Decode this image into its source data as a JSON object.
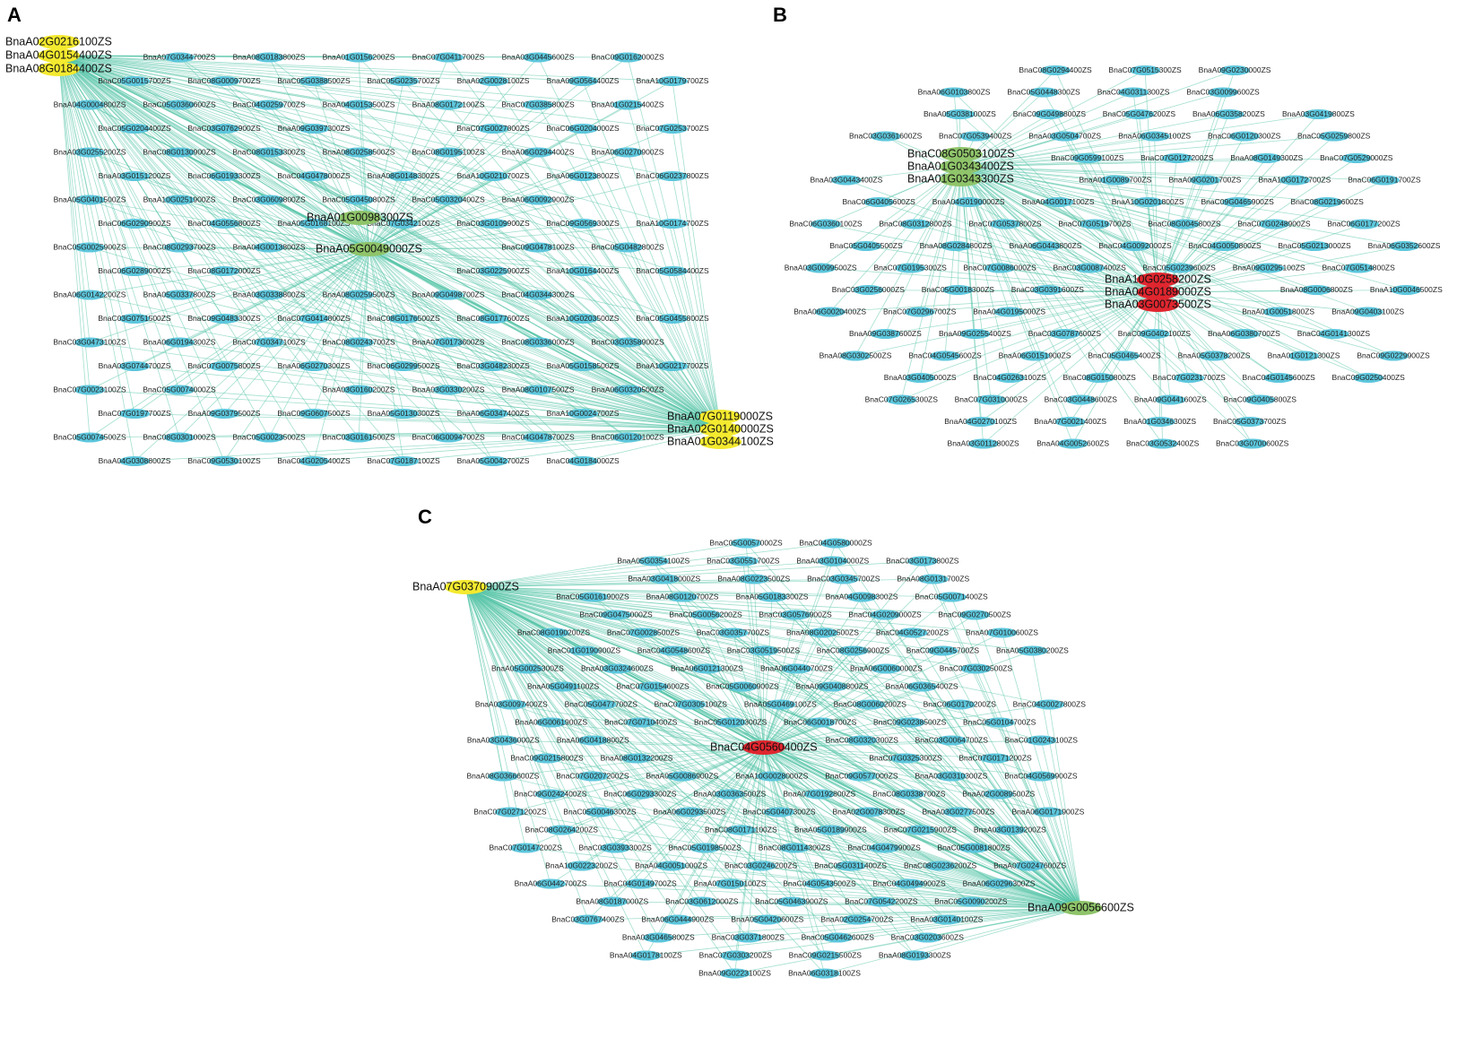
{
  "node_color": "#5cc6dc",
  "edge_color": "#56c4a8",
  "panels": [
    {
      "label": "A",
      "hub_groups": [
        {
          "color": "#f4ea2f",
          "genes": [
            "BnaA02G0216100ZS",
            "BnaA04G0154400ZS",
            "BnaA08G0184400ZS"
          ]
        },
        {
          "color": "#8fc46a",
          "genes": [
            "BnaA01G0098300ZS",
            "BnaA05G0049000ZS"
          ]
        },
        {
          "color": "#f4ea2f",
          "genes": [
            "BnaA07G0119000ZS",
            "BnaA02G0140000ZS",
            "BnaA01G0344100ZS"
          ]
        }
      ],
      "nodes": [
        "BnaA07G0344700ZS",
        "BnaA08G0183800ZS",
        "BnaA01G0156200ZS",
        "BnaC07G0411700ZS",
        "BnaA03G0445600ZS",
        "BnaC09G0162000ZS",
        "BnaC05G0015700ZS",
        "BnaC08G0009700ZS",
        "BnaC05G0388500ZS",
        "BnaC05G0235700ZS",
        "BnaA02G0028100ZS",
        "BnaA09G0564400ZS",
        "BnaA10G0179700ZS",
        "BnaA04G0004800ZS",
        "BnaC05G0360600ZS",
        "BnaC04G0259700ZS",
        "BnaA04G0153500ZS",
        "BnaA08G0172100ZS",
        "BnaC07G0385800ZS",
        "BnaA01G0215400ZS",
        "BnaC05G0204400ZS",
        "BnaC03G0762900ZS",
        "BnaA09G0397300ZS",
        "BnaC07G0027800ZS",
        "BnaC06G0204000ZS",
        "BnaC07G0253700ZS",
        "BnaA03G0255200ZS",
        "BnaC08G0130900ZS",
        "BnaC08G0153300ZS",
        "BnaA08G0258500ZS",
        "BnaC08G0195100ZS",
        "BnaA06G0294400ZS",
        "BnaA06G0270900ZS",
        "BnaA03G0151200ZS",
        "BnaC06G0193300ZS",
        "BnaC04G0478000ZS",
        "BnaA08G0148300ZS",
        "BnaA10G0210700ZS",
        "BnaA06G0123800ZS",
        "BnaC06G0237800ZS",
        "BnaA05G0401500ZS",
        "BnaA10G0251900ZS",
        "BnaC03G0609800ZS",
        "BnaC05G0450800ZS",
        "BnaC05G0320400ZS",
        "BnaA06G0092900ZS",
        "BnaC06G0290900ZS",
        "BnaC04G0556800ZS",
        "BnaA05G0168100ZS",
        "BnaC07G0342100ZS",
        "BnaC03G0109900ZS",
        "BnaC09G0569300ZS",
        "BnaA10G0174700ZS",
        "BnaC05G0025900ZS",
        "BnaC08G0293700ZS",
        "BnaA04G0013800ZS",
        "BnaC09G0478100ZS",
        "BnaC05G0482800ZS",
        "BnaC06G0289000ZS",
        "BnaC08G0172000ZS",
        "BnaC03G0225900ZS",
        "BnaA10G0164400ZS",
        "BnaC05G0584400ZS",
        "BnaA06G0142200ZS",
        "BnaA05G0337800ZS",
        "BnaA03G0338800ZS",
        "BnaA08G0259500ZS",
        "BnaA09G0498700ZS",
        "BnaC04G0344300ZS",
        "BnaC03G0751500ZS",
        "BnaC09G0483300ZS",
        "BnaC07G0414800ZS",
        "BnaC08G0176500ZS",
        "BnaC08G0177600ZS",
        "BnaA10G0203500ZS",
        "BnaC05G0455800ZS",
        "BnaC03G0473100ZS",
        "BnaA06G0194300ZS",
        "BnaC07G0347100ZS",
        "BnaC08G0243700ZS",
        "BnaA07G0173600ZS",
        "BnaC08G0336000ZS",
        "BnaC03G0358900ZS",
        "BnaA03G0744700ZS",
        "BnaC07G0075800ZS",
        "BnaA06G0270300ZS",
        "BnaC06G0299500ZS",
        "BnaC03G0482300ZS",
        "BnaA05G0158500ZS",
        "BnaA10G0217700ZS",
        "BnaC07G0023100ZS",
        "BnaC05G0074000ZS",
        "BnaA03G0160200ZS",
        "BnaA03G0330200ZS",
        "BnaA08G0107500ZS",
        "BnaA06G0320500ZS",
        "BnaC07G0197700ZS",
        "BnaA09G0379500ZS",
        "BnaC09G0607500ZS",
        "BnaA05G0130300ZS",
        "BnaA06G0347400ZS",
        "BnaA10G0024700ZS",
        "BnaC05G0074500ZS",
        "BnaC08G0301000ZS",
        "BnaC05G0023500ZS",
        "BnaC03G0161500ZS",
        "BnaC06G0094700ZS",
        "BnaC04G0478700ZS",
        "BnaC06G0120100ZS",
        "BnaA04G0308800ZS",
        "BnaC09G0530100ZS",
        "BnaC04G0205400ZS",
        "BnaC07G0187100ZS",
        "BnaA05G0042700ZS",
        "BnaC04G0184000ZS"
      ]
    },
    {
      "label": "B",
      "hub_groups": [
        {
          "color": "#8fc46a",
          "genes": [
            "BnaC08G0503100ZS",
            "BnaA01G0343400ZS",
            "BnaA01G0343300ZS"
          ]
        },
        {
          "color": "#e0262f",
          "genes": [
            "BnaA10G0258200ZS",
            "BnaA04G0189000ZS",
            "BnaA03G0073500ZS"
          ]
        }
      ],
      "nodes": [
        "BnaC08G0294400ZS",
        "BnaC07G0515300ZS",
        "BnaA09G0230000ZS",
        "BnaA06G0103800ZS",
        "BnaC05G0448300ZS",
        "BnaC04G0311300ZS",
        "BnaC03G0099600ZS",
        "BnaA05G0381000ZS",
        "BnaC09G0498800ZS",
        "BnaC05G0476200ZS",
        "BnaA06G0358200ZS",
        "BnaA03G0419800ZS",
        "BnaC03G0361600ZS",
        "BnaC07G0539400ZS",
        "BnaA03G0504700ZS",
        "BnaA06G0345100ZS",
        "BnaC06G0120300ZS",
        "BnaC05G0259800ZS",
        "BnaC09G0599100ZS",
        "BnaC07G0127200ZS",
        "BnaA08G0149300ZS",
        "BnaC07G0529000ZS",
        "BnaA03G0443400ZS",
        "BnaA01G0089700ZS",
        "BnaA09G0201700ZS",
        "BnaA10G0172700ZS",
        "BnaC06G0191700ZS",
        "BnaC06G0405600ZS",
        "BnaA04G0190000ZS",
        "BnaA04G0017100ZS",
        "BnaA10G0201800ZS",
        "BnaC09G0465900ZS",
        "BnaC08G0219600ZS",
        "BnaC06G0360100ZS",
        "BnaC08G0312800ZS",
        "BnaC07G0537800ZS",
        "BnaC07G0519700ZS",
        "BnaC08G0045800ZS",
        "BnaC07G0248900ZS",
        "BnaC06G0177200ZS",
        "BnaC05G0405500ZS",
        "BnaA08G0284800ZS",
        "BnaA06G0443800ZS",
        "BnaC04G0092000ZS",
        "BnaC04G0050800ZS",
        "BnaC05G0213000ZS",
        "BnaA06G0352600ZS",
        "BnaA03G0099500ZS",
        "BnaC07G0195300ZS",
        "BnaC07G0086000ZS",
        "BnaC03G0087400ZS",
        "BnaC05G0239600ZS",
        "BnaA09G0295100ZS",
        "BnaC07G0514800ZS",
        "BnaC03G0256000ZS",
        "BnaC05G0018300ZS",
        "BnaC03G0391600ZS",
        "BnaA08G0006800ZS",
        "BnaA10G0046500ZS",
        "BnaA06G0020400ZS",
        "BnaC07G0296700ZS",
        "BnaA04G0195000ZS",
        "BnaA01G0051800ZS",
        "BnaA09G0403100ZS",
        "BnaA09G0387600ZS",
        "BnaA09G0255400ZS",
        "BnaC03G0787600ZS",
        "BnaC09G0402100ZS",
        "BnaA06G0380700ZS",
        "BnaC04G0141300ZS",
        "BnaA08G0302500ZS",
        "BnaC04G0545600ZS",
        "BnaA06G0151900ZS",
        "BnaC05G0465400ZS",
        "BnaA05G0378200ZS",
        "BnaA01G0121300ZS",
        "BnaC09G0229900ZS",
        "BnaA03G0405000ZS",
        "BnaC04G0263100ZS",
        "BnaC08G0150800ZS",
        "BnaC07G0231700ZS",
        "BnaC04G0145600ZS",
        "BnaC09G0250400ZS",
        "BnaC07G0265300ZS",
        "BnaC07G0310000ZS",
        "BnaC03G0448600ZS",
        "BnaA09G0441600ZS",
        "BnaC09G0405800ZS",
        "BnaA04G0270100ZS",
        "BnaA07G0021400ZS",
        "BnaA01G0346300ZS",
        "BnaC05G0373700ZS",
        "BnaA03G0112800ZS",
        "BnaA04G0052600ZS",
        "BnaC03G0532400ZS",
        "BnaC03G0700600ZS"
      ]
    },
    {
      "label": "C",
      "hub_groups": [
        {
          "color": "#f4ea2f",
          "genes": [
            "BnaA07G0370900ZS"
          ]
        },
        {
          "color": "#e0262f",
          "genes": [
            "BnaC04G0560400ZS"
          ]
        },
        {
          "color": "#8fc46a",
          "genes": [
            "BnaA09G0056600ZS"
          ]
        }
      ],
      "nodes": [
        "BnaC05G0057000ZS",
        "BnaC04G0580000ZS",
        "BnaA05G0354100ZS",
        "BnaC03G0551700ZS",
        "BnaA03G0104000ZS",
        "BnaC03G0173800ZS",
        "BnaA03G0418000ZS",
        "BnaA08G0223500ZS",
        "BnaC03G0345700ZS",
        "BnaA08G0131700ZS",
        "BnaC05G0161900ZS",
        "BnaA08G0120700ZS",
        "BnaA05G0183300ZS",
        "BnaA04G0098300ZS",
        "BnaC05G0071400ZS",
        "BnaC09G0475000ZS",
        "BnaC05G0056200ZS",
        "BnaC03G0576900ZS",
        "BnaC04G0209000ZS",
        "BnaC09G0270500ZS",
        "BnaC08G0190200ZS",
        "BnaC07G0028500ZS",
        "BnaC03G0357700ZS",
        "BnaA08G0202500ZS",
        "BnaC04G0527200ZS",
        "BnaA07G0100600ZS",
        "BnaC01G0190900ZS",
        "BnaC04G0548600ZS",
        "BnaC03G0519500ZS",
        "BnaC08G0256900ZS",
        "BnaC09G0445700ZS",
        "BnaA05G0380200ZS",
        "BnaA05G0025300ZS",
        "BnaA03G0324600ZS",
        "BnaA06G0121300ZS",
        "BnaA06G0440700ZS",
        "BnaA06G0060000ZS",
        "BnaC07G0302500ZS",
        "BnaA05G0491100ZS",
        "BnaC07G0154600ZS",
        "BnaC05G0060900ZS",
        "BnaA09G0408800ZS",
        "BnaA06G0365400ZS",
        "BnaA03G0097400ZS",
        "BnaC05G0477700ZS",
        "BnaC07G0305100ZS",
        "BnaA05G0469100ZS",
        "BnaC08G0060200ZS",
        "BnaC06G0170200ZS",
        "BnaC04G0027800ZS",
        "BnaA06G0061900ZS",
        "BnaC07G0710400ZS",
        "BnaC05G0120300ZS",
        "BnaC06G0018700ZS",
        "BnaC09G0238500ZS",
        "BnaC05G0104700ZS",
        "BnaA03G0436000ZS",
        "BnaA06G0418800ZS",
        "BnaC08G0320300ZS",
        "BnaC03G0064700ZS",
        "BnaC01G0243100ZS",
        "BnaC09G0215800ZS",
        "BnaA08G0132200ZS",
        "BnaC07G0325300ZS",
        "BnaC07G0171200ZS",
        "BnaA08G0366600ZS",
        "BnaC07G0207200ZS",
        "BnaA05G0086900ZS",
        "BnaA10G0028000ZS",
        "BnaC09G0577000ZS",
        "BnaA03G0310300ZS",
        "BnaC04G0569900ZS",
        "BnaC09G0242400ZS",
        "BnaC06G0293300ZS",
        "BnaA03G0363500ZS",
        "BnaA07G0192800ZS",
        "BnaC08G0338700ZS",
        "BnaA02G0089500ZS",
        "BnaC07G0271200ZS",
        "BnaC05G0046300ZS",
        "BnaA06G0293500ZS",
        "BnaC05G0407300ZS",
        "BnaA02G0078300ZS",
        "BnaA03G0277500ZS",
        "BnaA06G0171900ZS",
        "BnaC08G0264200ZS",
        "BnaC08G0171100ZS",
        "BnaA05G0189900ZS",
        "BnaC07G0215900ZS",
        "BnaA03G0139200ZS",
        "BnaC07G0147200ZS",
        "BnaC03G0393300ZS",
        "BnaC05G0198500ZS",
        "BnaC08G0114300ZS",
        "BnaC04G0479900ZS",
        "BnaC05G0081800ZS",
        "BnaA10G0223200ZS",
        "BnaA04G0051000ZS",
        "BnaC03G0246200ZS",
        "BnaC05G0311400ZS",
        "BnaC08G0236200ZS",
        "BnaA07G0247600ZS",
        "BnaA06G0442700ZS",
        "BnaC04G0149700ZS",
        "BnaA07G0150100ZS",
        "BnaC04G0543500ZS",
        "BnaC04G0494900ZS",
        "BnaA06G0296300ZS",
        "BnaA08G0187000ZS",
        "BnaC03G0612000ZS",
        "BnaC05G0463900ZS",
        "BnaC07G0542200ZS",
        "BnaC05G0090200ZS",
        "BnaC03G0767400ZS",
        "BnaA06G0444900ZS",
        "BnaA05G0420600ZS",
        "BnaA02G0254700ZS",
        "BnaA03G0140100ZS",
        "BnaA03G0465800ZS",
        "BnaC03G0371800ZS",
        "BnaC05G0462600ZS",
        "BnaC03G0203600ZS",
        "BnaA04G0178100ZS",
        "BnaC07G0303200ZS",
        "BnaC09G0215500ZS",
        "BnaA08G0193300ZS",
        "BnaA09G0223100ZS",
        "BnaA06G0318100ZS"
      ]
    }
  ]
}
